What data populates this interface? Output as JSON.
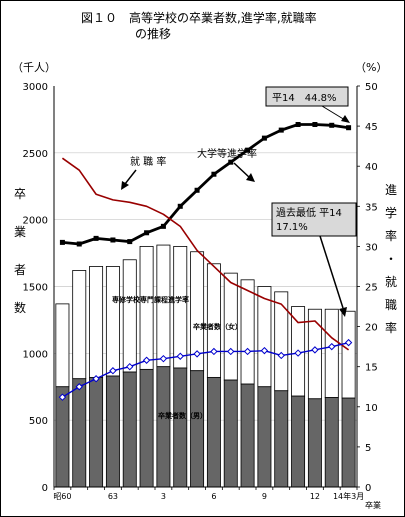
{
  "chart_data": {
    "type": "bar+line",
    "title": "図１０　高等学校の卒業者数,進学率,就職率",
    "subtitle": "の推移",
    "left_unit": "（千人）",
    "right_unit": "（%）",
    "left_axis_label": [
      "卒",
      "業",
      "者",
      "数"
    ],
    "right_axis_label": [
      "進",
      "学",
      "率",
      "・",
      "就",
      "職",
      "率"
    ],
    "x_suffix": "卒業",
    "left_ylim": [
      0,
      3000
    ],
    "left_ticks": [
      "0",
      "500",
      "1000",
      "1500",
      "2000",
      "2500",
      "3000"
    ],
    "right_ylim": [
      0,
      50
    ],
    "right_ticks": [
      "0",
      "5",
      "10",
      "15",
      "20",
      "25",
      "30",
      "35",
      "40",
      "45",
      "50"
    ],
    "x_tick_labels": [
      {
        "index": 0,
        "label": "昭60"
      },
      {
        "index": 3,
        "label": "63"
      },
      {
        "index": 6,
        "label": "3"
      },
      {
        "index": 9,
        "label": "6"
      },
      {
        "index": 12,
        "label": "9"
      },
      {
        "index": 15,
        "label": "12"
      },
      {
        "index": 17,
        "label": "14年3月"
      }
    ],
    "bars": {
      "male": [
        750,
        810,
        820,
        830,
        860,
        880,
        900,
        890,
        870,
        820,
        800,
        770,
        750,
        720,
        680,
        660,
        670,
        665
      ],
      "total": [
        1370,
        1620,
        1650,
        1650,
        1700,
        1800,
        1810,
        1800,
        1760,
        1670,
        1600,
        1550,
        1500,
        1460,
        1350,
        1330,
        1330,
        1315
      ]
    },
    "series": [
      {
        "values": [
          30.5,
          30.3,
          31.0,
          30.8,
          30.6,
          31.7,
          32.5,
          35.0,
          37.0,
          39.0,
          40.5,
          42.0,
          43.5,
          44.5,
          45.2,
          45.2,
          45.1,
          44.8
        ]
      },
      {
        "values": [
          41.0,
          39.5,
          36.5,
          35.8,
          35.5,
          35.0,
          34.0,
          32.5,
          29.5,
          27.5,
          25.5,
          24.5,
          23.5,
          22.8,
          20.5,
          20.7,
          18.6,
          17.1
        ]
      },
      {
        "values": [
          11.2,
          12.5,
          13.5,
          14.5,
          15.0,
          15.8,
          16.0,
          16.3,
          16.6,
          16.9,
          16.9,
          16.9,
          17.0,
          16.4,
          16.7,
          17.1,
          17.5,
          18.0
        ]
      }
    ],
    "annotations": {
      "university_label": "大学等進学率",
      "employment_label": "就 職 率",
      "vocational_label": "専修学校専門課程進学率",
      "female_label": "卒業者数（女）",
      "male_label": "卒業者数（男）",
      "peak_box": "平14　44.8%",
      "low_box_line1": "過去最低 平14",
      "low_box_line2": "17.1%"
    },
    "colors": {
      "male_bar": "#666666",
      "female_bar": "#ffffff",
      "university_line": "#000000",
      "employment_line": "#990000",
      "vocational_line": "#0000cc",
      "box_fill": "#d9d9d9"
    }
  }
}
